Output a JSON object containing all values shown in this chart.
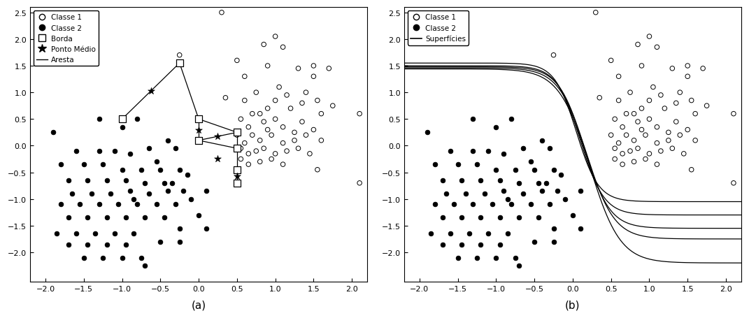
{
  "class1": [
    [
      0.3,
      2.5
    ],
    [
      -0.25,
      1.7
    ],
    [
      0.5,
      1.6
    ],
    [
      0.85,
      1.9
    ],
    [
      0.6,
      1.3
    ],
    [
      0.9,
      1.5
    ],
    [
      1.0,
      2.05
    ],
    [
      1.1,
      1.85
    ],
    [
      1.3,
      1.45
    ],
    [
      1.5,
      1.5
    ],
    [
      1.5,
      1.3
    ],
    [
      1.7,
      1.45
    ],
    [
      2.1,
      0.6
    ],
    [
      0.35,
      0.9
    ],
    [
      0.6,
      0.85
    ],
    [
      0.75,
      1.0
    ],
    [
      0.8,
      0.6
    ],
    [
      0.9,
      0.7
    ],
    [
      1.0,
      0.85
    ],
    [
      1.05,
      1.1
    ],
    [
      1.15,
      0.95
    ],
    [
      1.2,
      0.7
    ],
    [
      1.35,
      0.8
    ],
    [
      1.4,
      1.0
    ],
    [
      1.55,
      0.85
    ],
    [
      1.6,
      0.6
    ],
    [
      1.75,
      0.75
    ],
    [
      0.55,
      0.5
    ],
    [
      0.65,
      0.35
    ],
    [
      0.7,
      0.6
    ],
    [
      0.85,
      0.45
    ],
    [
      0.9,
      0.3
    ],
    [
      1.0,
      0.5
    ],
    [
      1.1,
      0.35
    ],
    [
      1.25,
      0.25
    ],
    [
      1.35,
      0.45
    ],
    [
      1.5,
      0.3
    ],
    [
      0.5,
      0.2
    ],
    [
      0.6,
      0.05
    ],
    [
      0.7,
      0.2
    ],
    [
      0.8,
      0.1
    ],
    [
      0.95,
      0.2
    ],
    [
      1.1,
      0.05
    ],
    [
      1.25,
      0.1
    ],
    [
      1.4,
      0.2
    ],
    [
      1.6,
      0.1
    ],
    [
      0.55,
      -0.05
    ],
    [
      0.65,
      -0.15
    ],
    [
      0.75,
      -0.1
    ],
    [
      0.85,
      -0.05
    ],
    [
      1.0,
      -0.15
    ],
    [
      1.15,
      -0.1
    ],
    [
      1.3,
      -0.05
    ],
    [
      1.45,
      -0.15
    ],
    [
      2.1,
      -0.7
    ],
    [
      0.55,
      -0.25
    ],
    [
      0.65,
      -0.35
    ],
    [
      0.8,
      -0.3
    ],
    [
      0.95,
      -0.25
    ],
    [
      1.1,
      -0.35
    ],
    [
      1.55,
      -0.45
    ]
  ],
  "class2": [
    [
      -1.9,
      0.25
    ],
    [
      -1.3,
      0.5
    ],
    [
      -0.8,
      0.5
    ],
    [
      -1.0,
      0.35
    ],
    [
      -1.6,
      -0.1
    ],
    [
      -1.3,
      -0.1
    ],
    [
      -1.1,
      -0.1
    ],
    [
      -0.9,
      -0.15
    ],
    [
      -0.65,
      -0.05
    ],
    [
      -0.3,
      -0.05
    ],
    [
      -0.55,
      -0.3
    ],
    [
      -0.4,
      0.1
    ],
    [
      -1.8,
      -0.35
    ],
    [
      -1.5,
      -0.35
    ],
    [
      -1.25,
      -0.35
    ],
    [
      -1.0,
      -0.45
    ],
    [
      -0.75,
      -0.45
    ],
    [
      -0.5,
      -0.45
    ],
    [
      -0.25,
      -0.45
    ],
    [
      -1.7,
      -0.65
    ],
    [
      -1.45,
      -0.65
    ],
    [
      -1.2,
      -0.65
    ],
    [
      -0.95,
      -0.65
    ],
    [
      -0.7,
      -0.7
    ],
    [
      -0.45,
      -0.7
    ],
    [
      -0.15,
      -0.55
    ],
    [
      -1.65,
      -0.9
    ],
    [
      -1.4,
      -0.9
    ],
    [
      -1.15,
      -0.9
    ],
    [
      -0.9,
      -0.85
    ],
    [
      -0.65,
      -0.9
    ],
    [
      -0.4,
      -0.85
    ],
    [
      -0.85,
      -1.0
    ],
    [
      -1.8,
      -1.1
    ],
    [
      -1.55,
      -1.1
    ],
    [
      -1.3,
      -1.1
    ],
    [
      -1.05,
      -1.1
    ],
    [
      -0.8,
      -1.1
    ],
    [
      -0.55,
      -1.1
    ],
    [
      -1.7,
      -1.35
    ],
    [
      -1.45,
      -1.35
    ],
    [
      -1.2,
      -1.35
    ],
    [
      -0.95,
      -1.35
    ],
    [
      -0.7,
      -1.35
    ],
    [
      -0.45,
      -1.35
    ],
    [
      -1.85,
      -1.65
    ],
    [
      -1.6,
      -1.65
    ],
    [
      -1.35,
      -1.65
    ],
    [
      -1.1,
      -1.65
    ],
    [
      -0.85,
      -1.65
    ],
    [
      -1.7,
      -1.85
    ],
    [
      -1.45,
      -1.85
    ],
    [
      -1.2,
      -1.85
    ],
    [
      -0.95,
      -1.85
    ],
    [
      -1.5,
      -2.1
    ],
    [
      -1.25,
      -2.1
    ],
    [
      -1.0,
      -2.1
    ],
    [
      -0.75,
      -2.1
    ],
    [
      -0.7,
      -2.25
    ],
    [
      -0.35,
      -0.7
    ],
    [
      -0.2,
      -0.85
    ],
    [
      -0.3,
      -1.1
    ],
    [
      -0.1,
      -1.0
    ],
    [
      0.1,
      -0.85
    ],
    [
      0.0,
      -1.3
    ],
    [
      0.1,
      -1.55
    ],
    [
      -0.25,
      -1.55
    ],
    [
      -0.5,
      -1.8
    ],
    [
      -0.25,
      -1.8
    ]
  ],
  "border_points": [
    [
      -0.25,
      1.55
    ],
    [
      -1.0,
      0.5
    ],
    [
      0.0,
      0.5
    ],
    [
      0.0,
      0.1
    ],
    [
      0.5,
      0.25
    ],
    [
      0.5,
      -0.05
    ],
    [
      0.5,
      -0.45
    ],
    [
      0.5,
      -0.7
    ]
  ],
  "midpoints": [
    [
      -0.625,
      1.025
    ],
    [
      0.0,
      0.3
    ],
    [
      0.25,
      0.175
    ],
    [
      0.25,
      -0.25
    ],
    [
      0.5,
      -0.575
    ]
  ],
  "edges": [
    [
      [
        -0.25,
        1.55
      ],
      [
        -1.0,
        0.5
      ]
    ],
    [
      [
        -0.25,
        1.55
      ],
      [
        0.0,
        0.5
      ]
    ],
    [
      [
        0.0,
        0.5
      ],
      [
        0.0,
        0.1
      ]
    ],
    [
      [
        0.0,
        0.5
      ],
      [
        0.5,
        0.25
      ]
    ],
    [
      [
        0.0,
        0.1
      ],
      [
        0.5,
        0.25
      ]
    ],
    [
      [
        0.0,
        0.1
      ],
      [
        0.5,
        -0.05
      ]
    ],
    [
      [
        0.5,
        0.25
      ],
      [
        0.5,
        -0.05
      ]
    ],
    [
      [
        0.5,
        -0.05
      ],
      [
        0.5,
        -0.45
      ]
    ],
    [
      [
        0.5,
        -0.45
      ],
      [
        0.5,
        -0.7
      ]
    ]
  ],
  "xlim": [
    -2.2,
    2.2
  ],
  "ylim": [
    -2.55,
    2.6
  ],
  "xticks": [
    -2,
    -1.5,
    -1,
    -0.5,
    0,
    0.5,
    1,
    1.5,
    2
  ],
  "yticks": [
    -2,
    -1.5,
    -1,
    -0.5,
    0,
    0.5,
    1,
    1.5,
    2,
    2.5
  ],
  "bg_color": "#ffffff"
}
